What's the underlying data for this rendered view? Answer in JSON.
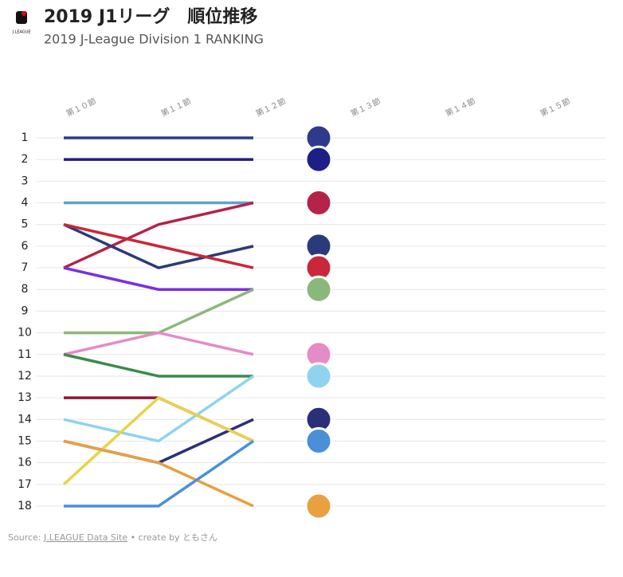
{
  "chart_data": {
    "type": "line",
    "title": "2019 J1リーグ　順位推移",
    "subtitle": "2019 J-League Division 1 RANKING",
    "logo_text": "J.LEAGUE",
    "source_prefix": "Source:",
    "source_link": "J.LEAGUE Data Site",
    "source_suffix": "• create by ともさん",
    "categories": [
      "第１０節",
      "第１１節",
      "第１２節",
      "第１３節",
      "第１４節",
      "第１５節"
    ],
    "ylim": [
      1,
      18
    ],
    "y_inverted": true,
    "yticks": [
      1,
      2,
      3,
      4,
      5,
      6,
      7,
      8,
      9,
      10,
      11,
      12,
      13,
      14,
      15,
      16,
      17,
      18
    ],
    "grid": true,
    "series": [
      {
        "color": "#2e3a8c",
        "values": [
          1,
          1,
          1,
          null,
          null,
          null
        ]
      },
      {
        "color": "#1d1f86",
        "values": [
          2,
          2,
          2,
          null,
          null,
          null
        ]
      },
      {
        "color": "#5ba3c9",
        "values": [
          4,
          4,
          4,
          null,
          null,
          null
        ]
      },
      {
        "color": "#b5234a",
        "values": [
          7,
          5,
          4,
          null,
          null,
          null
        ]
      },
      {
        "color": "#2b3a7a",
        "values": [
          5,
          7,
          6,
          null,
          null,
          null
        ]
      },
      {
        "color": "#c8283a",
        "values": [
          5,
          6,
          7,
          null,
          null,
          null
        ]
      },
      {
        "color": "#7b2fe0",
        "values": [
          7,
          8,
          8,
          null,
          null,
          null
        ]
      },
      {
        "color": "#8ab87a",
        "values": [
          10,
          10,
          8,
          null,
          null,
          null
        ]
      },
      {
        "color": "#e58bc8",
        "values": [
          11,
          10,
          11,
          null,
          null,
          null
        ]
      },
      {
        "color": "#3d8a4a",
        "values": [
          11,
          12,
          12,
          null,
          null,
          null
        ]
      },
      {
        "color": "#8b1a3a",
        "values": [
          13,
          13,
          15,
          null,
          null,
          null
        ]
      },
      {
        "color": "#8fd3ee",
        "values": [
          14,
          15,
          12,
          null,
          null,
          null
        ]
      },
      {
        "color": "#2a2f7a",
        "values": [
          15,
          16,
          14,
          null,
          null,
          null
        ]
      },
      {
        "color": "#e8d34a",
        "values": [
          17,
          13,
          15,
          null,
          null,
          null
        ]
      },
      {
        "color": "#e8a040",
        "values": [
          15,
          16,
          18,
          null,
          null,
          null
        ]
      },
      {
        "color": "#4a90d9",
        "values": [
          18,
          18,
          15,
          null,
          null,
          null
        ]
      }
    ]
  }
}
